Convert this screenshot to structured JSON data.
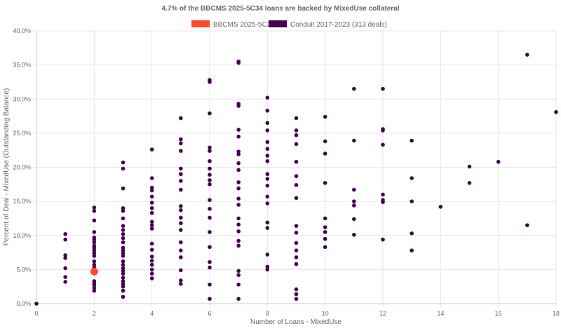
{
  "chart_data": {
    "type": "scatter",
    "title": "4.7% of the BBCMS 2025-5C34 loans are backed by MixedUse collateral",
    "xlabel": "Number of Loans - MixedUse",
    "ylabel": "Percent of Deal - MixedUse (Outstanding Balance)",
    "xlim": [
      0,
      18
    ],
    "ylim": [
      0,
      40
    ],
    "xticks": [
      "0",
      "2",
      "4",
      "6",
      "8",
      "10",
      "12",
      "14",
      "16",
      "18"
    ],
    "yticks": [
      "0.0%",
      "5.0%",
      "10.0%",
      "15.0%",
      "20.0%",
      "25.0%",
      "30.0%",
      "35.0%",
      "40.0%"
    ],
    "grid": true,
    "legend_position": "top-center",
    "series": [
      {
        "name": "BBCMS 2025-5C34",
        "color": "#ff4a2a",
        "points": [
          [
            2,
            4.7
          ]
        ]
      },
      {
        "name": "Conduit 2017-2023 (313 deals)",
        "color": "#44044f",
        "points": [
          [
            0,
            0
          ],
          [
            1,
            10.2
          ],
          [
            1,
            9.4
          ],
          [
            1,
            7.1
          ],
          [
            1,
            6.7
          ],
          [
            1,
            5.2
          ],
          [
            1,
            3.9
          ],
          [
            1,
            3.2
          ],
          [
            2,
            14.1
          ],
          [
            2,
            13.6
          ],
          [
            2,
            12.2
          ],
          [
            2,
            10.5
          ],
          [
            2,
            9.7
          ],
          [
            2,
            9.4
          ],
          [
            2,
            9.0
          ],
          [
            2,
            8.5
          ],
          [
            2,
            8.2
          ],
          [
            2,
            7.8
          ],
          [
            2,
            7.4
          ],
          [
            2,
            7.0
          ],
          [
            2,
            6.2
          ],
          [
            2,
            5.7
          ],
          [
            2,
            5.3
          ],
          [
            2,
            3.3
          ],
          [
            2,
            3.0
          ],
          [
            2,
            2.7
          ],
          [
            2,
            2.3
          ],
          [
            2,
            1.9
          ],
          [
            3,
            20.7
          ],
          [
            3,
            19.8
          ],
          [
            3,
            16.9
          ],
          [
            3,
            14.0
          ],
          [
            3,
            13.6
          ],
          [
            3,
            12.5
          ],
          [
            3,
            11.4
          ],
          [
            3,
            10.8
          ],
          [
            3,
            10.2
          ],
          [
            3,
            9.6
          ],
          [
            3,
            9.0
          ],
          [
            3,
            8.2
          ],
          [
            3,
            7.8
          ],
          [
            3,
            7.4
          ],
          [
            3,
            7.0
          ],
          [
            3,
            6.2
          ],
          [
            3,
            5.7
          ],
          [
            3,
            5.2
          ],
          [
            3,
            4.8
          ],
          [
            3,
            4.4
          ],
          [
            3,
            3.8
          ],
          [
            3,
            3.3
          ],
          [
            3,
            2.9
          ],
          [
            3,
            2.5
          ],
          [
            3,
            1.9
          ],
          [
            3,
            1.0
          ],
          [
            4,
            22.6
          ],
          [
            4,
            18.4
          ],
          [
            4,
            17.0
          ],
          [
            4,
            16.6
          ],
          [
            4,
            15.7
          ],
          [
            4,
            14.8
          ],
          [
            4,
            14.0
          ],
          [
            4,
            13.3
          ],
          [
            4,
            12.0
          ],
          [
            4,
            11.5
          ],
          [
            4,
            11.0
          ],
          [
            4,
            8.8
          ],
          [
            4,
            7.9
          ],
          [
            4,
            6.9
          ],
          [
            4,
            6.3
          ],
          [
            4,
            5.7
          ],
          [
            4,
            5.0
          ],
          [
            4,
            4.4
          ],
          [
            4,
            3.7
          ],
          [
            5,
            27.2
          ],
          [
            5,
            24.1
          ],
          [
            5,
            23.5
          ],
          [
            5,
            22.4
          ],
          [
            5,
            19.8
          ],
          [
            5,
            19.0
          ],
          [
            5,
            18.0
          ],
          [
            5,
            16.7
          ],
          [
            5,
            14.3
          ],
          [
            5,
            13.7
          ],
          [
            5,
            12.6
          ],
          [
            5,
            11.8
          ],
          [
            5,
            10.8
          ],
          [
            5,
            9.0
          ],
          [
            5,
            7.8
          ],
          [
            5,
            6.8
          ],
          [
            5,
            4.9
          ],
          [
            5,
            3.4
          ],
          [
            5,
            2.9
          ],
          [
            6,
            32.8
          ],
          [
            6,
            32.5
          ],
          [
            6,
            27.9
          ],
          [
            6,
            22.9
          ],
          [
            6,
            22.4
          ],
          [
            6,
            20.9
          ],
          [
            6,
            19.8
          ],
          [
            6,
            18.9
          ],
          [
            6,
            18.1
          ],
          [
            6,
            17.5
          ],
          [
            6,
            15.2
          ],
          [
            6,
            13.9
          ],
          [
            6,
            12.6
          ],
          [
            6,
            10.5
          ],
          [
            6,
            8.3
          ],
          [
            6,
            6.1
          ],
          [
            6,
            5.3
          ],
          [
            6,
            2.8
          ],
          [
            6,
            0.7
          ],
          [
            7,
            35.5
          ],
          [
            7,
            35.3
          ],
          [
            7,
            29.3
          ],
          [
            7,
            29.0
          ],
          [
            7,
            25.5
          ],
          [
            7,
            24.5
          ],
          [
            7,
            22.3
          ],
          [
            7,
            21.9
          ],
          [
            7,
            20.6
          ],
          [
            7,
            19.6
          ],
          [
            7,
            17.8
          ],
          [
            7,
            16.9
          ],
          [
            7,
            15.4
          ],
          [
            7,
            14.5
          ],
          [
            7,
            12.5
          ],
          [
            7,
            11.6
          ],
          [
            7,
            10.6
          ],
          [
            7,
            9.2
          ],
          [
            7,
            8.5
          ],
          [
            7,
            4.8
          ],
          [
            7,
            4.2
          ],
          [
            7,
            2.8
          ],
          [
            7,
            0.7
          ],
          [
            8,
            30.2
          ],
          [
            8,
            28.3
          ],
          [
            8,
            26.5
          ],
          [
            8,
            25.4
          ],
          [
            8,
            23.7
          ],
          [
            8,
            22.7
          ],
          [
            8,
            21.7
          ],
          [
            8,
            20.9
          ],
          [
            8,
            19.0
          ],
          [
            8,
            18.3
          ],
          [
            8,
            17.3
          ],
          [
            8,
            15.7
          ],
          [
            8,
            14.7
          ],
          [
            8,
            11.9
          ],
          [
            8,
            11.1
          ],
          [
            8,
            7.2
          ],
          [
            8,
            5.4
          ],
          [
            8,
            5.0
          ],
          [
            9,
            27.2
          ],
          [
            9,
            25.4
          ],
          [
            9,
            24.7
          ],
          [
            9,
            23.4
          ],
          [
            9,
            20.8
          ],
          [
            9,
            18.7
          ],
          [
            9,
            17.4
          ],
          [
            9,
            15.5
          ],
          [
            9,
            11.4
          ],
          [
            9,
            10.4
          ],
          [
            9,
            8.9
          ],
          [
            9,
            7.8
          ],
          [
            9,
            6.8
          ],
          [
            9,
            5.8
          ],
          [
            9,
            2.1
          ],
          [
            9,
            1.4
          ],
          [
            9,
            0.7
          ],
          [
            10,
            27.4
          ],
          [
            10,
            23.8
          ],
          [
            10,
            22.0
          ],
          [
            10,
            17.7
          ],
          [
            10,
            12.5
          ],
          [
            10,
            11.2
          ],
          [
            10,
            10.5
          ],
          [
            10,
            9.5
          ],
          [
            10,
            8.3
          ],
          [
            11,
            31.5
          ],
          [
            11,
            23.9
          ],
          [
            11,
            16.7
          ],
          [
            11,
            15.0
          ],
          [
            11,
            14.4
          ],
          [
            11,
            12.4
          ],
          [
            11,
            10.1
          ],
          [
            12,
            31.5
          ],
          [
            12,
            25.6
          ],
          [
            12,
            25.4
          ],
          [
            12,
            23.3
          ],
          [
            12,
            16.0
          ],
          [
            12,
            15.2
          ],
          [
            12,
            14.9
          ],
          [
            12,
            9.4
          ],
          [
            13,
            23.9
          ],
          [
            13,
            18.4
          ],
          [
            13,
            15.0
          ],
          [
            13,
            10.3
          ],
          [
            13,
            7.8
          ],
          [
            14,
            14.2
          ],
          [
            15,
            20.1
          ],
          [
            15,
            17.7
          ],
          [
            16,
            20.8
          ],
          [
            17,
            36.5
          ],
          [
            17,
            11.5
          ],
          [
            18,
            28.1
          ]
        ]
      }
    ]
  }
}
